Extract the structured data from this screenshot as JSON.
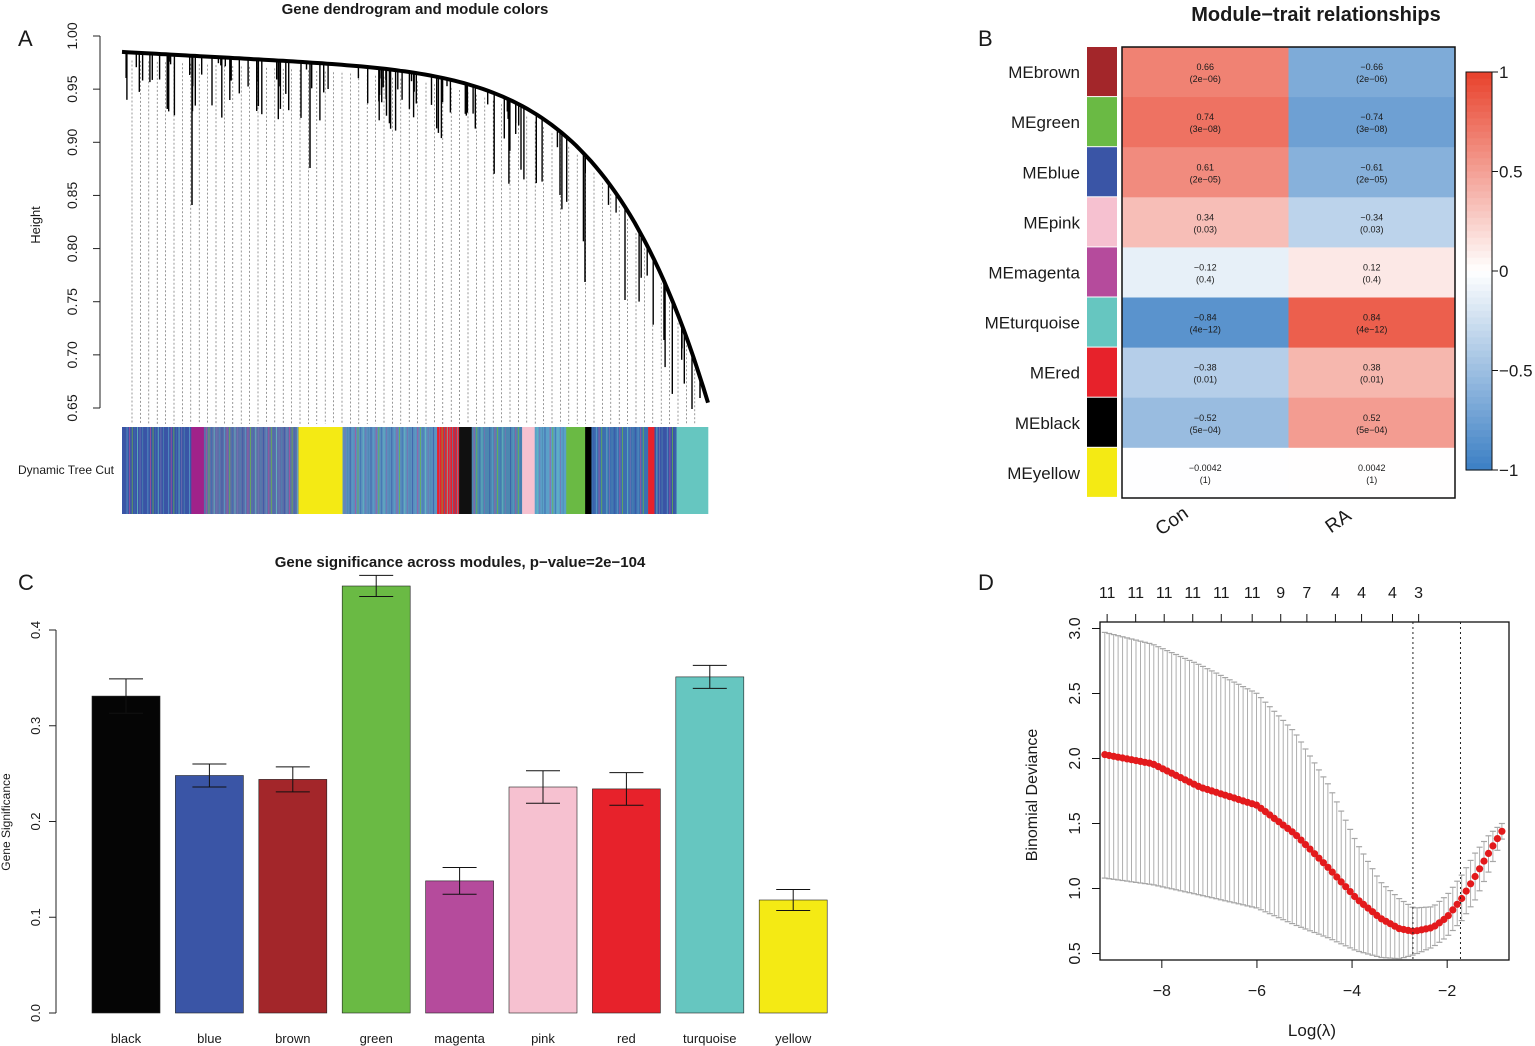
{
  "chart_data": [
    {
      "panel": "A",
      "type": "dendrogram",
      "title": "Gene dendrogram and module colors",
      "ylabel": "Height",
      "yticks": [
        "0.65",
        "0.70",
        "0.75",
        "0.80",
        "0.85",
        "0.90",
        "0.95",
        "1.00"
      ],
      "ylim": [
        0.65,
        1.0
      ],
      "color_bar_label": "Dynamic Tree Cut",
      "color_bar_segments": [
        {
          "color": "#3a55a6",
          "width": 0.11
        },
        {
          "color": "#a0228a",
          "width": 0.02
        },
        {
          "color": "#5d6ea8",
          "width": 0.15
        },
        {
          "color": "#f4ea14",
          "width": 0.07
        },
        {
          "color": "#5a8fbe",
          "width": 0.15
        },
        {
          "color": "#e7222b",
          "width": 0.035
        },
        {
          "color": "#101010",
          "width": 0.02
        },
        {
          "color": "#4c88b0",
          "width": 0.08
        },
        {
          "color": "#f6c1d0",
          "width": 0.02
        },
        {
          "color": "#5aa0c8",
          "width": 0.05
        },
        {
          "color": "#6aba44",
          "width": 0.03
        },
        {
          "color": "#000000",
          "width": 0.01
        },
        {
          "color": "#3d6fb0",
          "width": 0.09
        },
        {
          "color": "#e7222b",
          "width": 0.01
        },
        {
          "color": "#3a55a6",
          "width": 0.035
        },
        {
          "color": "#66c6c0",
          "width": 0.05
        }
      ]
    },
    {
      "panel": "B",
      "type": "heatmap",
      "title": "Module−trait relationships",
      "rows": [
        "MEbrown",
        "MEgreen",
        "MEblue",
        "MEpink",
        "MEmagenta",
        "MEturquoise",
        "MEred",
        "MEblack",
        "MEyellow"
      ],
      "row_colors": [
        "#a3262a",
        "#6aba44",
        "#3a55a6",
        "#f6c1d0",
        "#b54b9c",
        "#66c6c0",
        "#e7222b",
        "#000000",
        "#f4ea14"
      ],
      "columns": [
        "Con",
        "RA"
      ],
      "values": [
        [
          0.66,
          -0.66
        ],
        [
          0.74,
          -0.74
        ],
        [
          0.61,
          -0.61
        ],
        [
          0.34,
          -0.34
        ],
        [
          -0.12,
          0.12
        ],
        [
          -0.84,
          0.84
        ],
        [
          -0.38,
          0.38
        ],
        [
          -0.52,
          0.52
        ],
        [
          -0.0042,
          0.0042
        ]
      ],
      "value_labels": [
        [
          "0.66",
          "−0.66"
        ],
        [
          "0.74",
          "−0.74"
        ],
        [
          "0.61",
          "−0.61"
        ],
        [
          "0.34",
          "−0.34"
        ],
        [
          "−0.12",
          "0.12"
        ],
        [
          "−0.84",
          "0.84"
        ],
        [
          "−0.38",
          "0.38"
        ],
        [
          "−0.52",
          "0.52"
        ],
        [
          "−0.0042",
          "0.0042"
        ]
      ],
      "pvalue_labels": [
        [
          "(2e−06)",
          "(2e−06)"
        ],
        [
          "(3e−08)",
          "(3e−08)"
        ],
        [
          "(2e−05)",
          "(2e−05)"
        ],
        [
          "(0.03)",
          "(0.03)"
        ],
        [
          "(0.4)",
          "(0.4)"
        ],
        [
          "(4e−12)",
          "(4e−12)"
        ],
        [
          "(0.01)",
          "(0.01)"
        ],
        [
          "(5e−04)",
          "(5e−04)"
        ],
        [
          "(1)",
          "(1)"
        ]
      ],
      "colorbar_ticks": [
        "1",
        "0.5",
        "0",
        "−0.5",
        "−1"
      ],
      "colorbar_range": [
        -1,
        1
      ]
    },
    {
      "panel": "C",
      "type": "bar",
      "title": "Gene significance across modules, p−value=2e−104",
      "ylabel": "Gene Significance",
      "categories": [
        "black",
        "blue",
        "brown",
        "green",
        "magenta",
        "pink",
        "red",
        "turquoise",
        "yellow"
      ],
      "values": [
        0.331,
        0.248,
        0.244,
        0.446,
        0.138,
        0.236,
        0.234,
        0.351,
        0.118
      ],
      "errors": [
        0.018,
        0.012,
        0.013,
        0.011,
        0.014,
        0.017,
        0.017,
        0.012,
        0.011
      ],
      "colors": [
        "#050505",
        "#3a55a6",
        "#a3262a",
        "#6aba44",
        "#b54b9c",
        "#f6c1d0",
        "#e7222b",
        "#66c6c0",
        "#f4ea14"
      ],
      "yticks": [
        "0.0",
        "0.1",
        "0.2",
        "0.3",
        "0.4"
      ],
      "ylim": [
        0,
        0.4
      ]
    },
    {
      "panel": "D",
      "type": "line",
      "xlabel": "Log(λ)",
      "ylabel": "Binomial Deviance",
      "xticks": [
        "−8",
        "−6",
        "−4",
        "−2"
      ],
      "yticks": [
        "0.5",
        "1.0",
        "1.5",
        "2.0",
        "2.5",
        "3.0"
      ],
      "xlim": [
        -9.3,
        -0.7
      ],
      "ylim": [
        0.45,
        3.05
      ],
      "top_labels": [
        "11",
        "11",
        "11",
        "11",
        "11",
        "11",
        "9",
        "7",
        "4",
        "4",
        "4",
        "3"
      ],
      "top_label_x": [
        -9.15,
        -8.55,
        -7.95,
        -7.35,
        -6.75,
        -6.1,
        -5.5,
        -4.95,
        -4.35,
        -3.8,
        -3.15,
        -2.6
      ],
      "vlines": [
        -2.72,
        -1.72
      ],
      "curve_x": [
        -9.2,
        -8.2,
        -7.2,
        -6.0,
        -5.2,
        -4.5,
        -3.9,
        -3.4,
        -3.0,
        -2.7,
        -2.3,
        -2.0,
        -1.7,
        -1.4,
        -1.1,
        -0.85
      ],
      "curve_y": [
        2.03,
        1.96,
        1.78,
        1.64,
        1.42,
        1.16,
        0.92,
        0.77,
        0.69,
        0.67,
        0.7,
        0.78,
        0.92,
        1.1,
        1.29,
        1.44
      ],
      "upper_y": [
        2.97,
        2.88,
        2.72,
        2.5,
        2.2,
        1.8,
        1.35,
        1.05,
        0.92,
        0.85,
        0.86,
        0.95,
        1.1,
        1.28,
        1.42,
        1.5
      ],
      "lower_y": [
        1.08,
        1.03,
        0.95,
        0.85,
        0.72,
        0.62,
        0.52,
        0.47,
        0.46,
        0.49,
        0.55,
        0.63,
        0.75,
        0.92,
        1.15,
        1.38
      ]
    }
  ],
  "panels": {
    "a": "A",
    "b": "B",
    "c": "C",
    "d": "D"
  },
  "colors": {
    "heat_pos": "#e8412b",
    "heat_neg": "#3b7fc4",
    "curve": "#e31a1c",
    "errbar": "#a6a6a6"
  }
}
